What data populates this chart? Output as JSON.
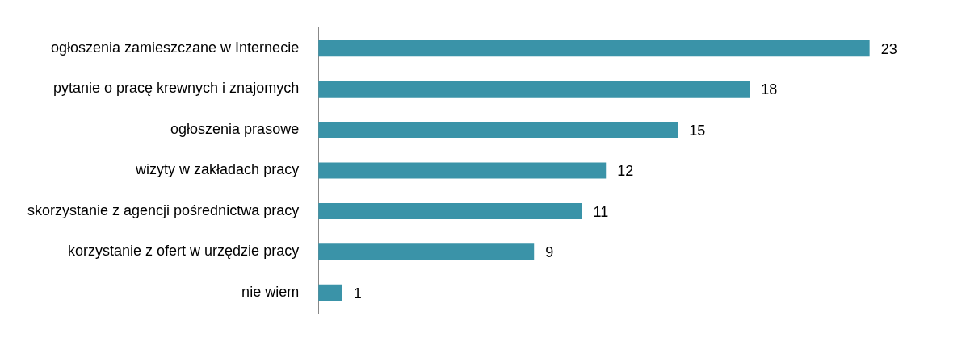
{
  "chart_data": {
    "type": "bar",
    "orientation": "horizontal",
    "categories": [
      "ogłoszenia zamieszczane w Internecie",
      "pytanie o pracę krewnych i znajomych",
      "ogłoszenia prasowe",
      "wizyty w zakładach pracy",
      "skorzystanie z agencji pośrednictwa pracy",
      "korzystanie z ofert w urzędzie pracy",
      "nie wiem"
    ],
    "values": [
      23,
      18,
      15,
      12,
      11,
      9,
      1
    ],
    "color": "#3a93a8",
    "data_labels": true,
    "grid": false,
    "legend": false,
    "tick_labels": "y"
  }
}
